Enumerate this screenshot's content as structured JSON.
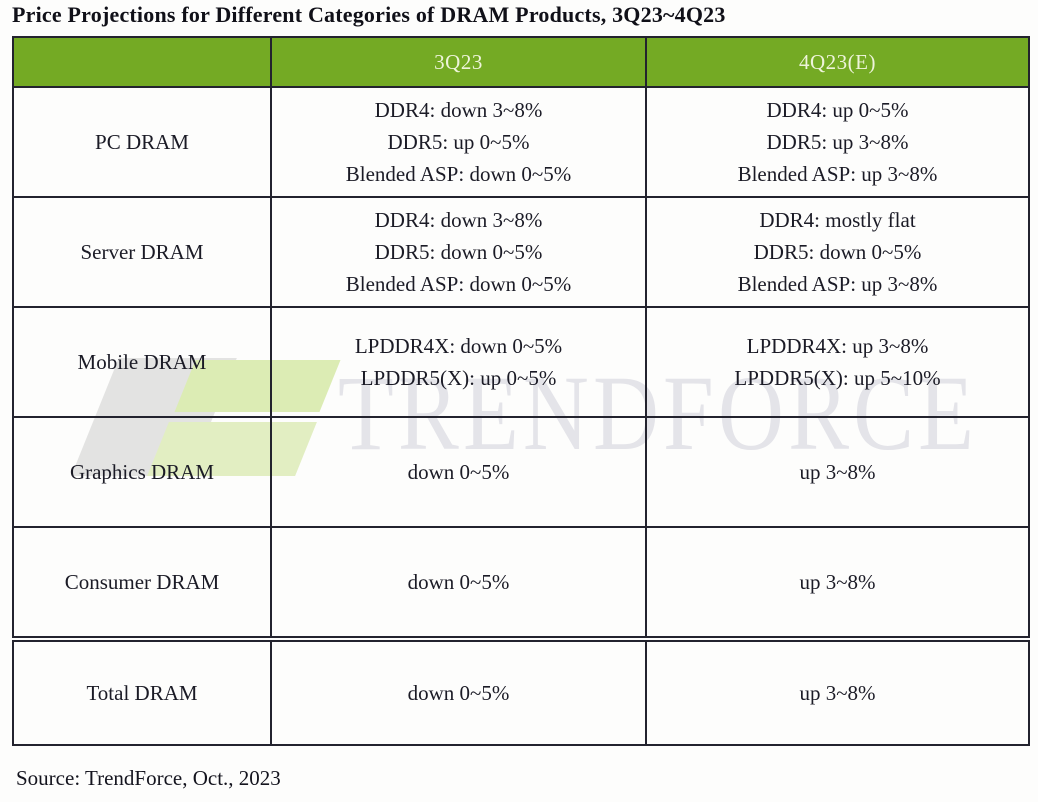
{
  "title": "Price Projections for Different Categories of DRAM Products, 3Q23~4Q23",
  "source": "Source: TrendForce, Oct.,  2023",
  "watermark": {
    "text": "TRENDFORCE"
  },
  "colors": {
    "header_bg": "#74aa24",
    "header_text": "#eef4da",
    "border": "#23232e",
    "body_text": "#1b1b26",
    "watermark_text": "#e4e4e9",
    "watermark_green": "#dcecb4",
    "watermark_gray": "#e3e3e2"
  },
  "chart_data": {
    "type": "table",
    "columns": [
      "",
      "3Q23",
      "4Q23(E)"
    ],
    "rows": [
      {
        "category": "PC DRAM",
        "q3": [
          "DDR4: down 3~8%",
          "DDR5: up 0~5%",
          "Blended ASP: down 0~5%"
        ],
        "q4": [
          "DDR4: up 0~5%",
          "DDR5:  up 3~8%",
          "Blended ASP: up 3~8%"
        ]
      },
      {
        "category": "Server DRAM",
        "q3": [
          "DDR4: down 3~8%",
          "DDR5: down 0~5%",
          "Blended ASP: down 0~5%"
        ],
        "q4": [
          "DDR4: mostly flat",
          "DDR5: down 0~5%",
          "Blended ASP: up 3~8%"
        ]
      },
      {
        "category": "Mobile DRAM",
        "q3": [
          "LPDDR4X: down 0~5%",
          "LPDDR5(X): up 0~5%"
        ],
        "q4": [
          "LPDDR4X: up 3~8%",
          "LPDDR5(X): up 5~10%"
        ]
      },
      {
        "category": "Graphics DRAM",
        "q3": [
          "down 0~5%"
        ],
        "q4": [
          "up  3~8%"
        ]
      },
      {
        "category": "Consumer DRAM",
        "q3": [
          "down 0~5%"
        ],
        "q4": [
          "up  3~8%"
        ]
      },
      {
        "category": "Total DRAM",
        "q3": [
          "down 0~5%"
        ],
        "q4": [
          "up  3~8%"
        ]
      }
    ]
  }
}
